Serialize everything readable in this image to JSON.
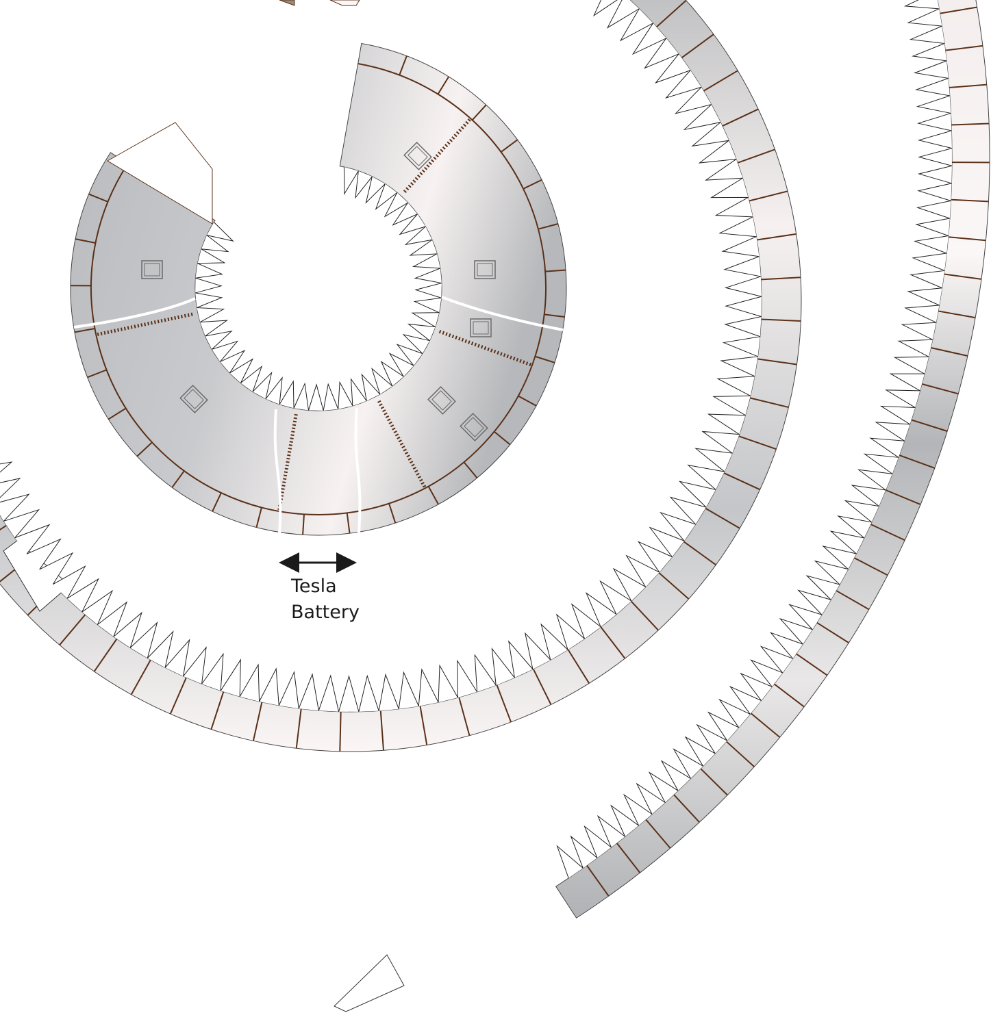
{
  "annotation": {
    "line1": "Tesla",
    "line2": "Battery"
  },
  "colors": {
    "panel_dark": "#aeb0b4",
    "panel_light": "#fbf7f6",
    "seam": "#5a3018",
    "tab_stroke": "#222222",
    "arrow": "#1a1a1a",
    "window": "#6a6a6a",
    "cable": "#ffffff"
  },
  "icons": {
    "arrow": "double-headed-arrow-icon"
  }
}
